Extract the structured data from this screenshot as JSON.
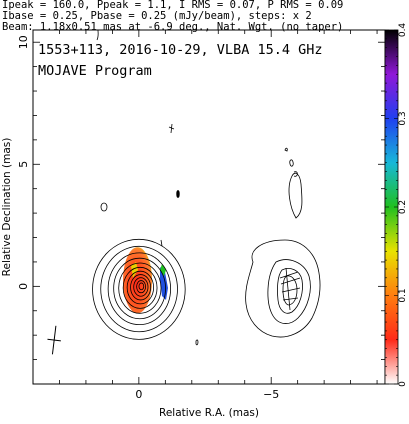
{
  "header": {
    "line1": "Ipeak = 160.0, Ppeak = 1.1, I RMS = 0.07, P RMS = 0.09",
    "line2": "Ibase = 0.25, Pbase = 0.25 (mJy/beam), steps: x 2",
    "line3": "Beam: 1.18x0.51 mas at -6.9 deg., Nat. Wgt. (no taper)"
  },
  "plot": {
    "title": "1553+113, 2016-10-29, VLBA 15.4 GHz",
    "subtitle": "MOJAVE Program"
  },
  "chart_data": {
    "type": "contour",
    "xlabel": "Relative R.A. (mas)",
    "ylabel": "Relative Declination (mas)",
    "xlim": [
      4,
      -9.3
    ],
    "ylim": [
      -4,
      10.5
    ],
    "xticks": [
      {
        "v": 0,
        "label": "0"
      },
      {
        "v": -5,
        "label": "−5"
      }
    ],
    "yticks": [
      {
        "v": 0,
        "label": "0"
      },
      {
        "v": 5,
        "label": "5"
      },
      {
        "v": 10,
        "label": "10"
      }
    ],
    "x_minor_step": 1,
    "y_minor_step": 1,
    "colorbar": {
      "range": [
        0,
        0.4
      ],
      "ticks": [
        {
          "v": 0,
          "label": "0"
        },
        {
          "v": 0.1,
          "label": "0.1"
        },
        {
          "v": 0.2,
          "label": "0.2"
        },
        {
          "v": 0.3,
          "label": "0.3"
        },
        {
          "v": 0.4,
          "label": "0.4"
        }
      ],
      "stops": [
        "#ffffff",
        "#ff2a18",
        "#ff7d10",
        "#e8e200",
        "#20c020",
        "#18b8d8",
        "#2040f0",
        "#9018d8",
        "#000000"
      ]
    },
    "intensity_contours": {
      "base_mJy_per_beam": 0.25,
      "step_factor": 2,
      "core_center": [
        0.0,
        0.0
      ],
      "core_radii_mas": [
        [
          1.75,
          2.05
        ],
        [
          1.45,
          1.75
        ],
        [
          1.18,
          1.47
        ],
        [
          0.98,
          1.24
        ],
        [
          0.8,
          1.03
        ],
        [
          0.64,
          0.84
        ],
        [
          0.5,
          0.67
        ],
        [
          0.38,
          0.52
        ],
        [
          0.27,
          0.38
        ],
        [
          0.17,
          0.25
        ],
        [
          0.09,
          0.14
        ]
      ]
    },
    "polarized_patch": {
      "center": [
        0.05,
        0.25
      ],
      "radii": [
        0.55,
        1.35
      ]
    },
    "beam": {
      "center": [
        3.2,
        -2.2
      ],
      "major_mas": 1.18,
      "minor_mas": 0.51,
      "pa_deg": -6.9
    }
  }
}
